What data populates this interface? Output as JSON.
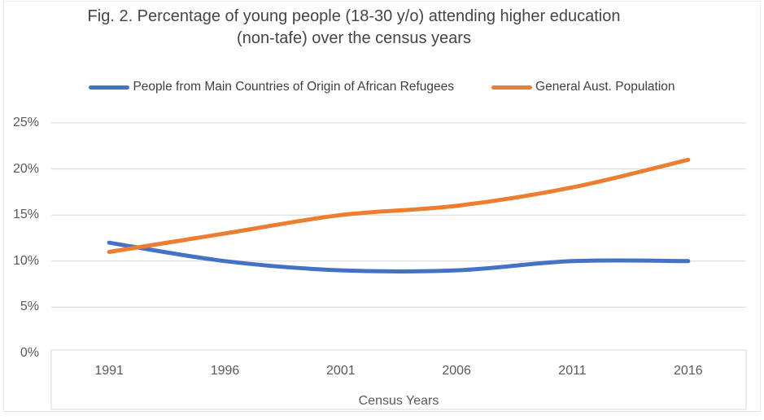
{
  "chart_data": {
    "type": "line",
    "title": "Fig. 2. Percentage of young people (18-30 y/o) attending higher education (non-tafe) over the census years",
    "categories": [
      "1991",
      "1996",
      "2001",
      "2006",
      "2011",
      "2016"
    ],
    "series": [
      {
        "name": "People from Main Countries of Origin of African Refugees",
        "color": "#4472C4",
        "values": [
          12,
          10,
          9,
          9,
          10,
          10
        ]
      },
      {
        "name": "General Aust. Population",
        "color": "#ED7D31",
        "values": [
          11,
          13,
          15,
          16,
          18,
          21
        ]
      }
    ],
    "xlabel": "Census Years",
    "ylabel": "",
    "ylim": [
      0,
      25
    ],
    "y_ticks": [
      {
        "value": 0,
        "label": "0%"
      },
      {
        "value": 5,
        "label": "5%"
      },
      {
        "value": 10,
        "label": "10%"
      },
      {
        "value": 15,
        "label": "15%"
      },
      {
        "value": 20,
        "label": "20%"
      },
      {
        "value": 25,
        "label": "25%"
      }
    ],
    "grid": "horizontal",
    "gridline_color": "#D9D9D9",
    "axis_box_color": "#D9D9D9",
    "legend_position": "top",
    "line_style": "smooth"
  }
}
